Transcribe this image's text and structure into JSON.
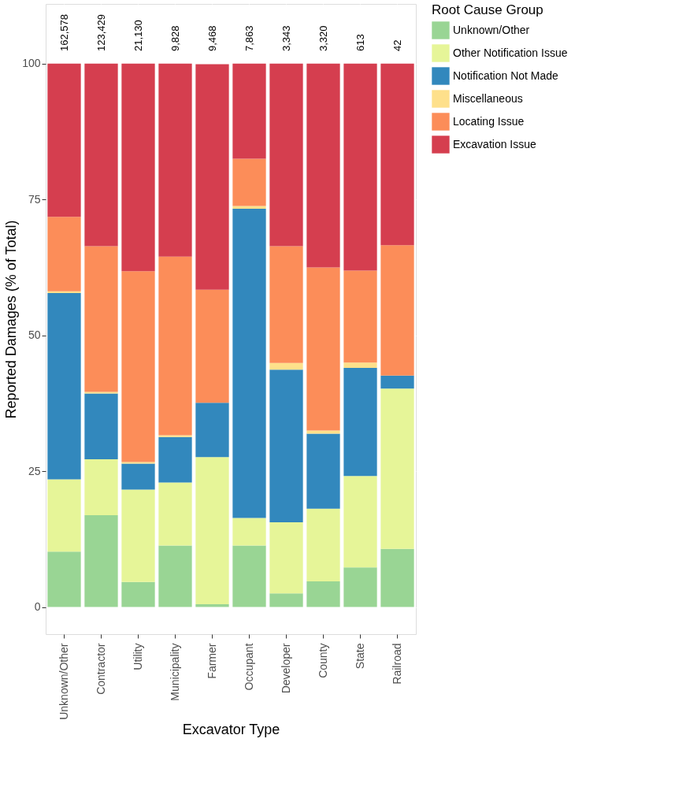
{
  "chart_data": {
    "type": "bar",
    "stacked": true,
    "xlabel": "Excavator Type",
    "ylabel": "Reported Damages (% of Total)",
    "legend_title": "Root Cause Group",
    "categories": [
      "Unknown/Other",
      "Contractor",
      "Utility",
      "Municipality",
      "Farmer",
      "Occupant",
      "Developer",
      "County",
      "State",
      "Railroad"
    ],
    "series": [
      {
        "name": "Unknown/Other",
        "color": "#99d594",
        "values": [
          10.2,
          16.9,
          4.6,
          11.3,
          0.5,
          11.3,
          2.5,
          4.7,
          7.3,
          10.7
        ]
      },
      {
        "name": "Other Notification Issue",
        "color": "#e6f598",
        "values": [
          13.3,
          10.3,
          17.0,
          11.6,
          27.1,
          5.1,
          13.1,
          13.4,
          16.8,
          29.5
        ]
      },
      {
        "name": "Notification Not Made",
        "color": "#3288bd",
        "values": [
          34.3,
          12.1,
          4.8,
          8.4,
          10.0,
          56.9,
          28.1,
          13.8,
          19.9,
          2.4
        ]
      },
      {
        "name": "Miscellaneous",
        "color": "#fee08b",
        "values": [
          0.3,
          0.3,
          0.3,
          0.3,
          0,
          0.5,
          1.2,
          0.6,
          1.0,
          0
        ]
      },
      {
        "name": "Locating Issue",
        "color": "#fc8d59",
        "values": [
          13.7,
          26.8,
          35.1,
          32.9,
          20.8,
          8.7,
          21.5,
          30.0,
          16.9,
          24.0
        ]
      },
      {
        "name": "Excavation Issue",
        "color": "#d53e4f",
        "values": [
          28.2,
          33.6,
          38.2,
          35.5,
          41.5,
          17.5,
          33.6,
          37.5,
          38.1,
          33.4
        ]
      }
    ],
    "annotations": [
      "162,578",
      "123,429",
      "21,130",
      "9,828",
      "9,468",
      "7,863",
      "3,343",
      "3,320",
      "613",
      "42"
    ],
    "ylim": [
      -5,
      111
    ],
    "yticks": [
      0,
      25,
      50,
      75,
      100
    ],
    "grid": true,
    "legend": "right"
  }
}
